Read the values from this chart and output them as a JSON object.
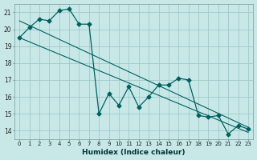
{
  "xlabel": "Humidex (Indice chaleur)",
  "bg_color": "#c8e8e8",
  "grid_color": "#a0c8c8",
  "line_color": "#006060",
  "xlim": [
    -0.5,
    23.5
  ],
  "ylim": [
    13.5,
    21.5
  ],
  "xticks": [
    0,
    1,
    2,
    3,
    4,
    5,
    6,
    7,
    8,
    9,
    10,
    11,
    12,
    13,
    14,
    15,
    16,
    17,
    18,
    19,
    20,
    21,
    22,
    23
  ],
  "yticks": [
    14,
    15,
    16,
    17,
    18,
    19,
    20,
    21
  ],
  "main_x": [
    0,
    1,
    2,
    3,
    4,
    5,
    6,
    7,
    8,
    9,
    10,
    11,
    12,
    13,
    14,
    15,
    16,
    17,
    18,
    19,
    20,
    21,
    22,
    23
  ],
  "main_y": [
    19.5,
    20.1,
    20.6,
    20.5,
    21.1,
    21.2,
    20.3,
    20.3,
    15.0,
    16.2,
    15.5,
    16.6,
    15.4,
    16.0,
    16.7,
    16.7,
    17.1,
    17.0,
    14.9,
    14.8,
    14.9,
    13.8,
    14.3,
    14.1
  ],
  "trend1_x": [
    0,
    23
  ],
  "trend1_y": [
    20.5,
    14.2
  ],
  "trend2_x": [
    0,
    23
  ],
  "trend2_y": [
    19.5,
    13.9
  ]
}
